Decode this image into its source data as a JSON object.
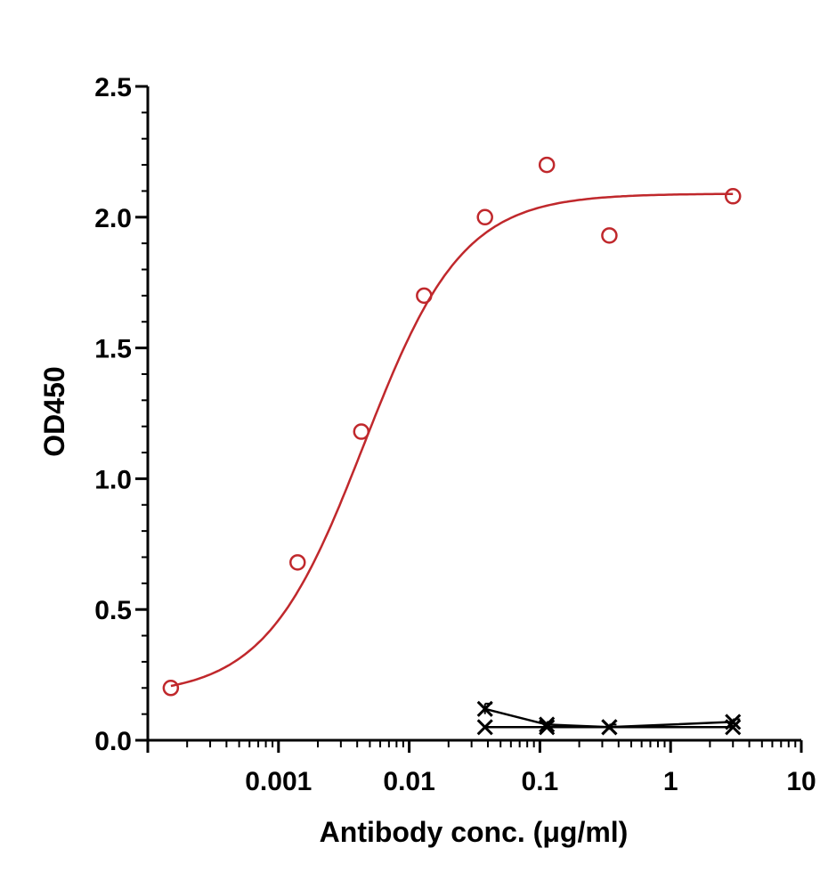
{
  "chart_data": {
    "type": "scatter",
    "title": "",
    "xlabel": "Antibody conc. (μg/ml)",
    "ylabel": "OD450",
    "x_scale": "log",
    "xlim": [
      0.0001,
      10
    ],
    "ylim": [
      0,
      2.5
    ],
    "x_tick_labels": [
      {
        "value": 0.001,
        "label": "0.001"
      },
      {
        "value": 0.01,
        "label": "0.01"
      },
      {
        "value": 0.1,
        "label": "0.1"
      },
      {
        "value": 1,
        "label": "1"
      },
      {
        "value": 10,
        "label": "10"
      }
    ],
    "y_tick_labels": [
      {
        "value": 0,
        "label": "0.0"
      },
      {
        "value": 0.5,
        "label": "0.5"
      },
      {
        "value": 1.0,
        "label": "1.0"
      },
      {
        "value": 1.5,
        "label": "1.5"
      },
      {
        "value": 2.0,
        "label": "2.0"
      },
      {
        "value": 2.5,
        "label": "2.5"
      }
    ],
    "grid": false,
    "series": [
      {
        "color": "#c0282c",
        "marker": "circle",
        "fit": "sigmoid",
        "x": [
          0.00015,
          0.0014,
          0.0043,
          0.013,
          0.038,
          0.113,
          0.34,
          3.0
        ],
        "y": [
          0.2,
          0.68,
          1.18,
          1.7,
          2.0,
          2.2,
          1.93,
          2.08
        ]
      },
      {
        "color": "#000000",
        "marker": "cross",
        "fit": "line",
        "x": [
          0.038,
          0.113,
          0.34,
          3.0
        ],
        "y": [
          0.12,
          0.06,
          0.05,
          0.07
        ],
        "y_err": [
          0.02,
          0.01,
          0.01,
          0.01
        ]
      },
      {
        "color": "#000000",
        "marker": "cross",
        "fit": "line",
        "x": [
          0.038,
          0.113,
          0.34,
          3.0
        ],
        "y": [
          0.05,
          0.05,
          0.05,
          0.05
        ]
      }
    ]
  }
}
